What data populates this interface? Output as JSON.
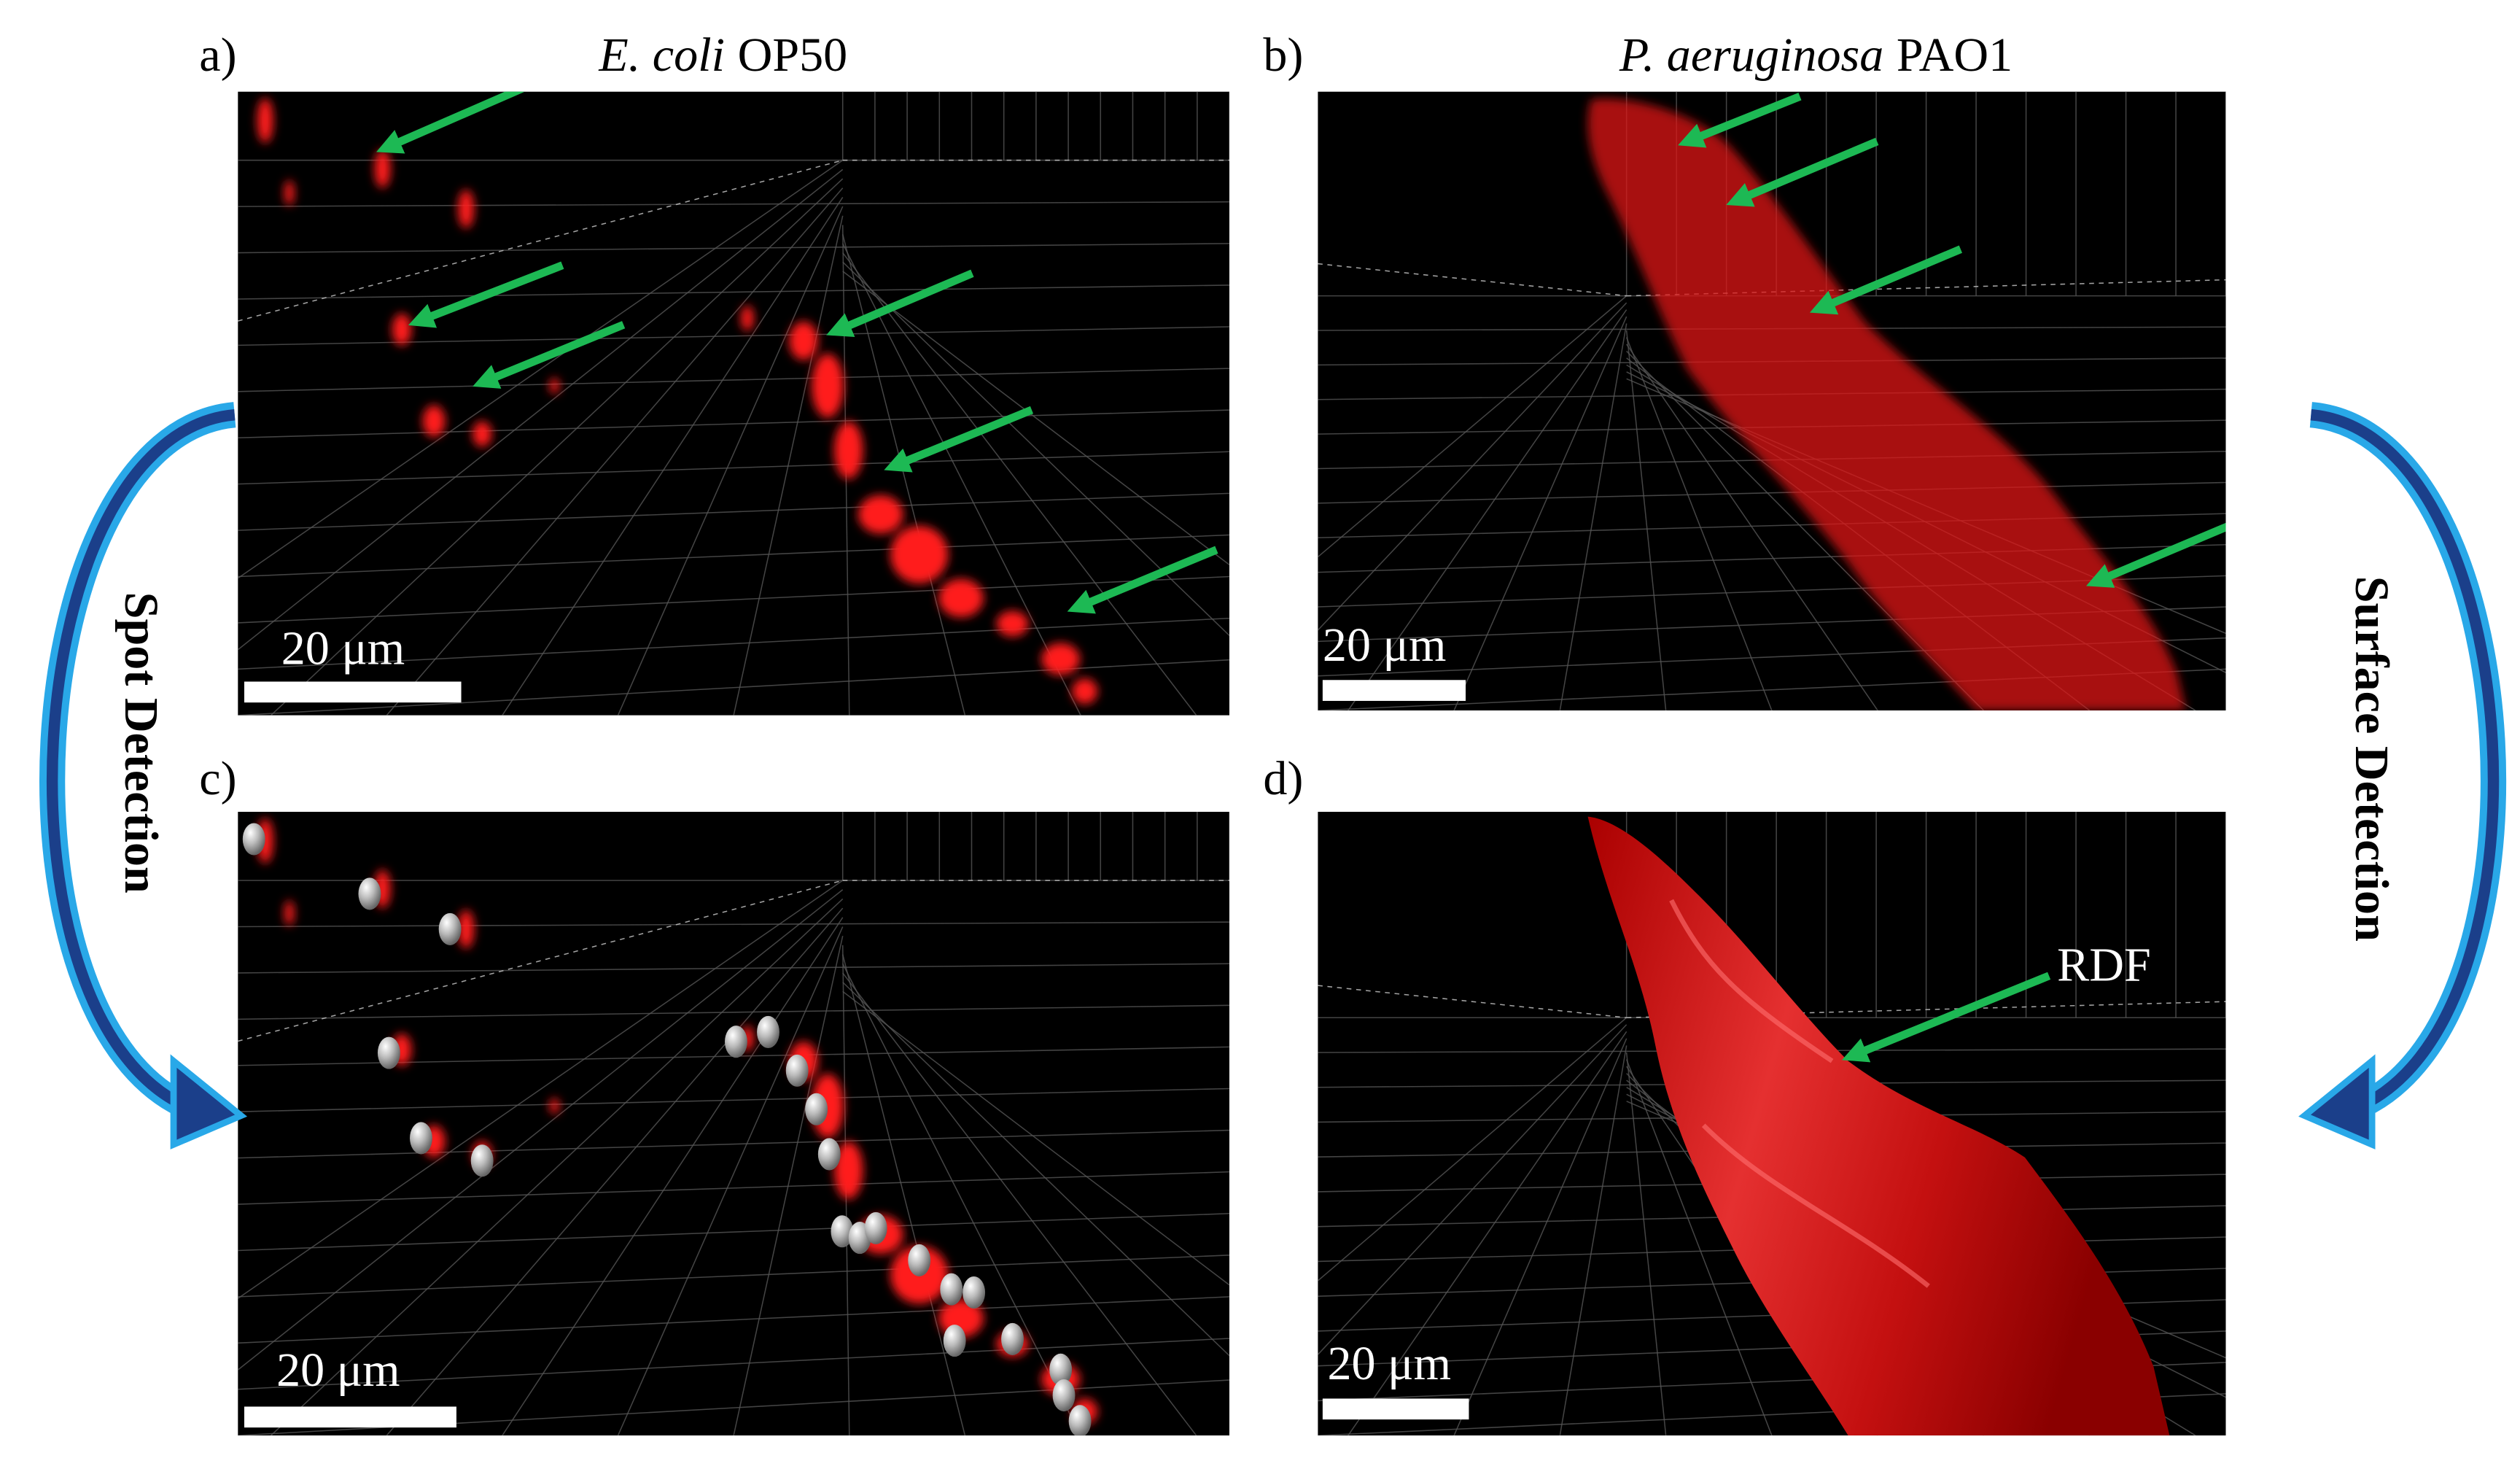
{
  "panels": [
    {
      "label": "a)",
      "title": {
        "species": "E. coli",
        "strain": "OP50"
      },
      "scale_bar": "20 μm"
    },
    {
      "label": "b)",
      "title": {
        "species": "P. aeruginosa",
        "strain": "PAO1"
      },
      "scale_bar": "20 μm"
    },
    {
      "label": "c)",
      "scale_bar": "20 μm"
    },
    {
      "label": "d)",
      "scale_bar": "20 μm",
      "annotation": "RDF"
    }
  ],
  "side_labels": {
    "left": "Spot Detection",
    "right": "Surface Detection"
  }
}
